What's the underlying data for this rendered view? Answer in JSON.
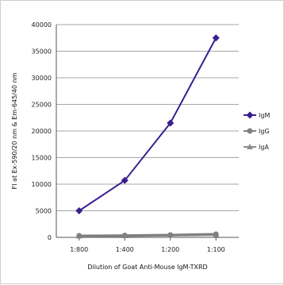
{
  "chart_data": {
    "type": "line",
    "title": "",
    "xlabel": "Dilution of Goat Anti-Mouse IgM-TXRD",
    "ylabel": "FI at Ex-590/20 nm & Em-645/40 nm",
    "categories": [
      "1:800",
      "1:400",
      "1:200",
      "1:100"
    ],
    "y_ticks": [
      0,
      5000,
      10000,
      15000,
      20000,
      25000,
      30000,
      35000,
      40000
    ],
    "y_tick_labels": [
      "0",
      "5000",
      "10000",
      "15000",
      "20000",
      "25000",
      "30000",
      "35000",
      "40000"
    ],
    "ylim": [
      0,
      40000
    ],
    "grid": true,
    "legend_position": "right",
    "series": [
      {
        "name": "IgM",
        "values": [
          5000,
          10700,
          21500,
          37500
        ],
        "color": "#3a1d8f",
        "marker": "diamond"
      },
      {
        "name": "IgG",
        "values": [
          300,
          350,
          450,
          600
        ],
        "color": "#808080",
        "marker": "circle"
      },
      {
        "name": "IgA",
        "values": [
          250,
          300,
          400,
          500
        ],
        "color": "#8c8c8c",
        "marker": "triangle"
      }
    ]
  }
}
